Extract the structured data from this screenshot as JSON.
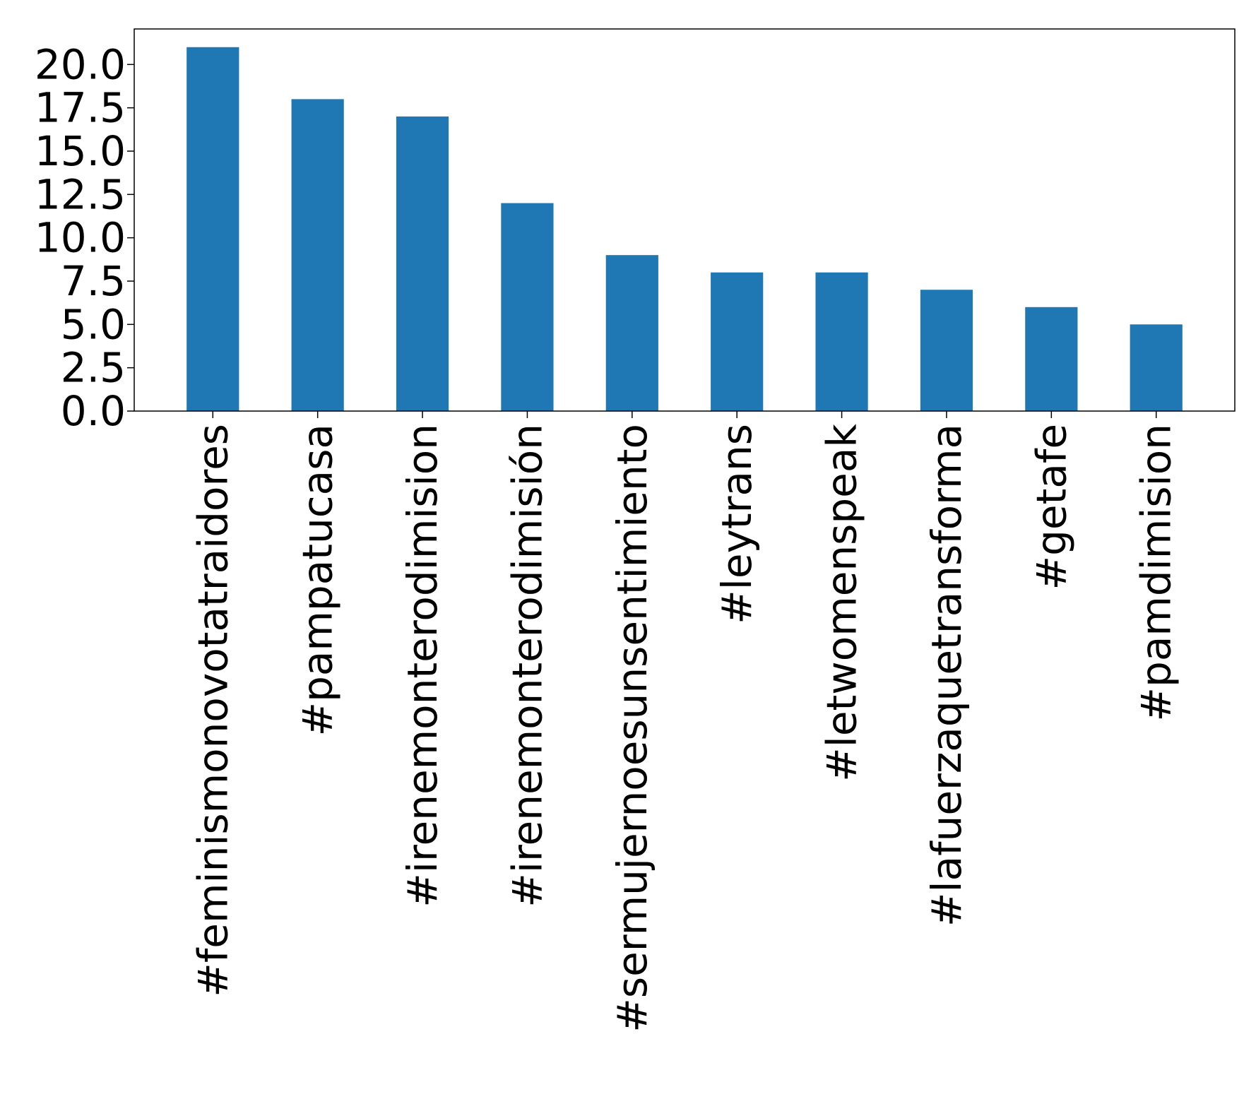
{
  "chart_data": {
    "type": "bar",
    "title": "",
    "xlabel": "",
    "ylabel": "",
    "categories": [
      "#feminismonovotatraidores",
      "#pampatucasa",
      "#irenemonterodimision",
      "#irenemonterodimisión",
      "#sermujernoesunsentimiento",
      "#leytrans",
      "#letwomenspeak",
      "#lafuerzaquetransforma",
      "#getafe",
      "#pamdimision"
    ],
    "values": [
      21,
      18,
      17,
      12,
      9,
      8,
      8,
      7,
      6,
      5
    ],
    "ylim": [
      0,
      22.05
    ],
    "yticks": [
      "0.0",
      "2.5",
      "5.0",
      "7.5",
      "10.0",
      "12.5",
      "15.0",
      "17.5",
      "20.0"
    ],
    "grid": false,
    "legend": "none",
    "bar_color": "#1f77b4"
  }
}
